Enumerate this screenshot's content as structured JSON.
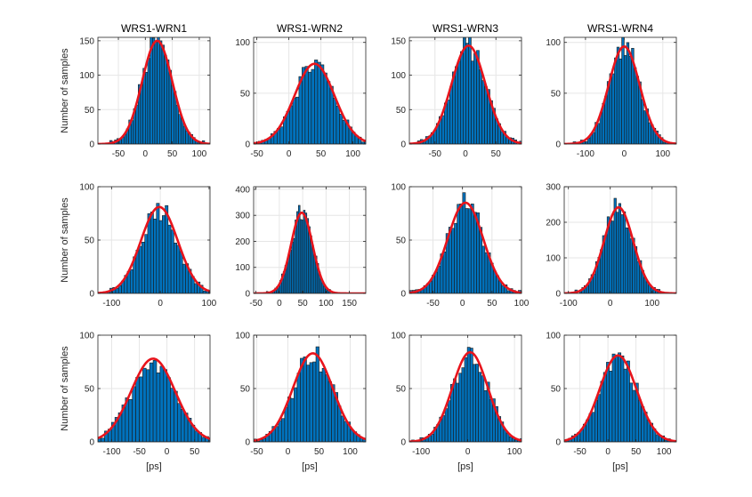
{
  "figure": {
    "column_titles": [
      "WRS1-WRN1",
      "WRS1-WRN2",
      "WRS1-WRN3",
      "WRS1-WRN4"
    ],
    "ylabel": "Number of samples",
    "xlabel": "[ps]"
  },
  "colors": {
    "bar_fill": "#0072BD",
    "bar_edge": "#1a1a1a",
    "fit_line": "#E8141C",
    "grid": "#e6e6e6",
    "axis": "#262626"
  },
  "chart_data": [
    {
      "type": "bar",
      "row": 0,
      "col": 0,
      "title": "WRS1-WRN1",
      "ylabel": "Number of samples",
      "xlabel": "",
      "xlim": [
        -88,
        120
      ],
      "ylim": [
        0,
        155
      ],
      "xticks": [
        -50,
        0,
        50,
        100
      ],
      "yticks": [
        0,
        50,
        100,
        150
      ],
      "dist": {
        "mean": 22,
        "sigma": 28,
        "peak": 150
      },
      "grid": true
    },
    {
      "type": "bar",
      "row": 0,
      "col": 1,
      "title": "WRS1-WRN2",
      "ylabel": "",
      "xlabel": "",
      "xlim": [
        -55,
        120
      ],
      "ylim": [
        0,
        105
      ],
      "xticks": [
        -50,
        0,
        50,
        100
      ],
      "yticks": [
        0,
        50,
        100
      ],
      "dist": {
        "mean": 40,
        "sigma": 31,
        "peak": 79
      },
      "grid": true
    },
    {
      "type": "bar",
      "row": 0,
      "col": 2,
      "title": "WRS1-WRN3",
      "ylabel": "",
      "xlabel": "",
      "xlim": [
        -92,
        92
      ],
      "ylim": [
        0,
        155
      ],
      "xticks": [
        -50,
        0,
        50
      ],
      "yticks": [
        0,
        50,
        100,
        150
      ],
      "dist": {
        "mean": 5,
        "sigma": 28,
        "peak": 143
      },
      "grid": true
    },
    {
      "type": "bar",
      "row": 0,
      "col": 3,
      "title": "WRS1-WRN4",
      "ylabel": "",
      "xlabel": "",
      "xlim": [
        -155,
        135
      ],
      "ylim": [
        0,
        105
      ],
      "xticks": [
        -100,
        0,
        100
      ],
      "yticks": [
        0,
        50,
        100
      ],
      "dist": {
        "mean": 0,
        "sigma": 40,
        "peak": 96
      },
      "grid": true
    },
    {
      "type": "bar",
      "row": 1,
      "col": 0,
      "title": "",
      "ylabel": "Number of samples",
      "xlabel": "",
      "xlim": [
        -128,
        102
      ],
      "ylim": [
        0,
        100
      ],
      "xticks": [
        -100,
        0,
        100
      ],
      "yticks": [
        0,
        50,
        100
      ],
      "dist": {
        "mean": -2,
        "sigma": 38,
        "peak": 81
      },
      "grid": true
    },
    {
      "type": "bar",
      "row": 1,
      "col": 1,
      "title": "",
      "ylabel": "",
      "xlabel": "",
      "xlim": [
        -55,
        185
      ],
      "ylim": [
        0,
        410
      ],
      "xticks": [
        -50,
        0,
        50,
        100,
        150
      ],
      "yticks": [
        0,
        100,
        200,
        300,
        400
      ],
      "dist": {
        "mean": 48,
        "sigma": 23,
        "peak": 310
      },
      "grid": true
    },
    {
      "type": "bar",
      "row": 1,
      "col": 2,
      "title": "",
      "ylabel": "",
      "xlabel": "",
      "xlim": [
        -90,
        100
      ],
      "ylim": [
        0,
        100
      ],
      "xticks": [
        -50,
        0,
        50,
        100
      ],
      "yticks": [
        0,
        50,
        100
      ],
      "dist": {
        "mean": 5,
        "sigma": 30,
        "peak": 85
      },
      "grid": true
    },
    {
      "type": "bar",
      "row": 1,
      "col": 3,
      "title": "",
      "ylabel": "",
      "xlabel": "",
      "xlim": [
        -110,
        158
      ],
      "ylim": [
        0,
        300
      ],
      "xticks": [
        -100,
        0,
        100
      ],
      "yticks": [
        0,
        100,
        200,
        300
      ],
      "dist": {
        "mean": 20,
        "sigma": 35,
        "peak": 242
      },
      "grid": true
    },
    {
      "type": "bar",
      "row": 2,
      "col": 0,
      "title": "",
      "ylabel": "Number of samples",
      "xlabel": "[ps]",
      "xlim": [
        -125,
        78
      ],
      "ylim": [
        0,
        100
      ],
      "xticks": [
        -100,
        -50,
        0,
        50
      ],
      "yticks": [
        0,
        50,
        100
      ],
      "dist": {
        "mean": -25,
        "sigma": 40,
        "peak": 78
      },
      "grid": true
    },
    {
      "type": "bar",
      "row": 2,
      "col": 1,
      "title": "",
      "ylabel": "",
      "xlabel": "[ps]",
      "xlim": [
        -55,
        125
      ],
      "ylim": [
        0,
        100
      ],
      "xticks": [
        -50,
        0,
        50,
        100
      ],
      "yticks": [
        0,
        50,
        100
      ],
      "dist": {
        "mean": 40,
        "sigma": 32,
        "peak": 83
      },
      "grid": true
    },
    {
      "type": "bar",
      "row": 2,
      "col": 2,
      "title": "",
      "ylabel": "",
      "xlabel": "[ps]",
      "xlim": [
        -125,
        115
      ],
      "ylim": [
        0,
        100
      ],
      "xticks": [
        -100,
        0,
        100
      ],
      "yticks": [
        0,
        50,
        100
      ],
      "dist": {
        "mean": 5,
        "sigma": 38,
        "peak": 84
      },
      "grid": true
    },
    {
      "type": "bar",
      "row": 2,
      "col": 3,
      "title": "",
      "ylabel": "",
      "xlabel": "[ps]",
      "xlim": [
        -78,
        122
      ],
      "ylim": [
        0,
        100
      ],
      "xticks": [
        -50,
        0,
        50,
        100
      ],
      "yticks": [
        0,
        50,
        100
      ],
      "dist": {
        "mean": 18,
        "sigma": 33,
        "peak": 81
      },
      "grid": true
    }
  ]
}
